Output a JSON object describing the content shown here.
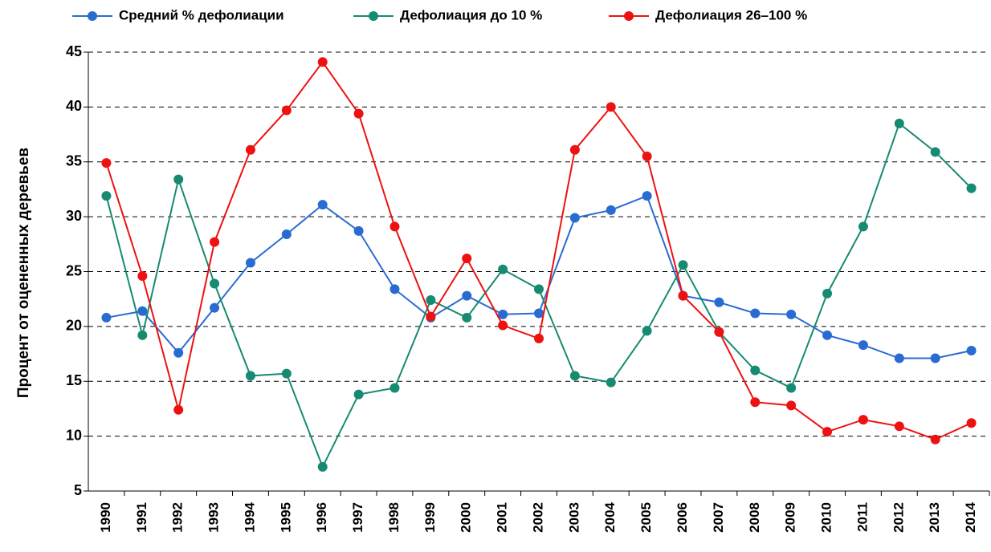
{
  "chart_data": {
    "type": "line",
    "y_label": "Процент от оцененных деревьев",
    "categories": [
      "1990",
      "1991",
      "1992",
      "1993",
      "1994",
      "1995",
      "1996",
      "1997",
      "1998",
      "1999",
      "2000",
      "2001",
      "2002",
      "2003",
      "2004",
      "2005",
      "2006",
      "2007",
      "2008",
      "2009",
      "2010",
      "2011",
      "2012",
      "2013",
      "2014"
    ],
    "series": [
      {
        "name": "Средний % дефолиации",
        "color": "#2a6bd2",
        "values": [
          20.8,
          21.4,
          17.6,
          21.7,
          25.8,
          28.4,
          31.1,
          28.7,
          23.4,
          20.8,
          22.8,
          21.1,
          21.2,
          29.9,
          30.6,
          31.9,
          22.8,
          22.2,
          21.2,
          21.1,
          19.2,
          18.3,
          17.1,
          17.1,
          17.8
        ]
      },
      {
        "name": "Дефолиация до 10 %",
        "color": "#178a72",
        "values": [
          31.9,
          19.2,
          33.4,
          23.9,
          15.5,
          15.7,
          7.2,
          13.8,
          14.4,
          22.4,
          20.8,
          25.2,
          23.4,
          15.5,
          14.9,
          19.6,
          25.6,
          19.5,
          16.0,
          14.4,
          23.0,
          29.1,
          38.5,
          35.9,
          32.6
        ]
      },
      {
        "name": "Дефолиация 26–100 %",
        "color": "#ee1111",
        "values": [
          34.9,
          24.6,
          12.4,
          27.7,
          36.1,
          39.7,
          44.1,
          39.4,
          29.1,
          20.9,
          26.2,
          20.1,
          18.9,
          36.1,
          40.0,
          35.5,
          22.8,
          19.5,
          13.1,
          12.8,
          10.4,
          11.5,
          10.9,
          9.7,
          11.2
        ]
      }
    ],
    "ylim": [
      5,
      45
    ],
    "yticks": [
      5,
      10,
      15,
      20,
      25,
      30,
      35,
      40,
      45
    ],
    "grid": true,
    "legend": "top"
  }
}
